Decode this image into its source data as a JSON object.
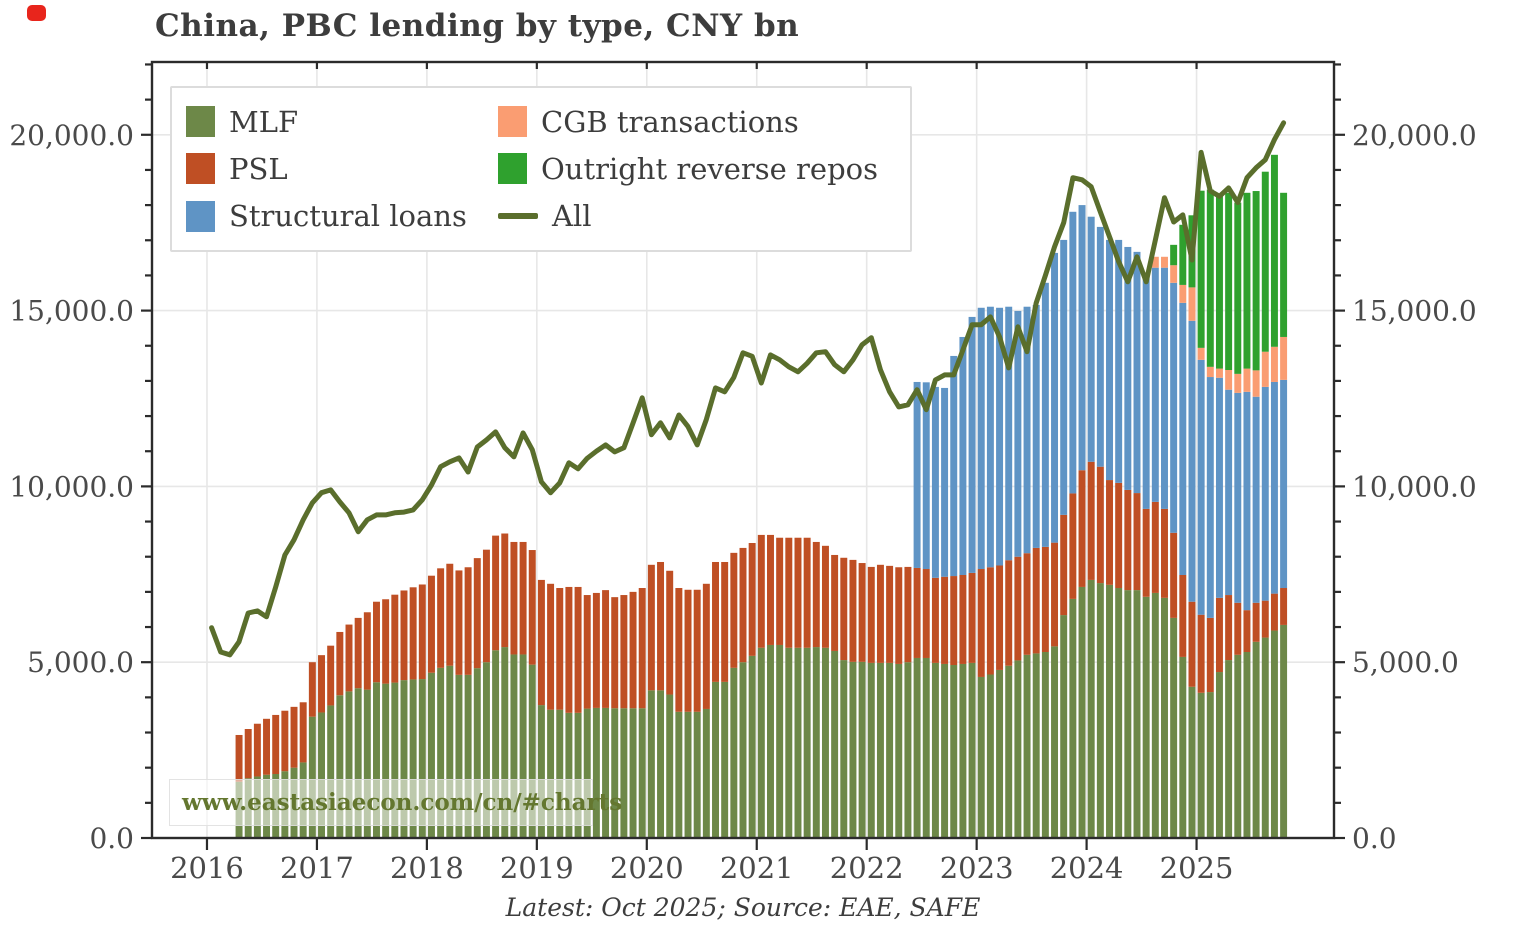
{
  "header": {
    "title": "China, PBC lending by type, CNY bn"
  },
  "caption": {
    "text": "Latest: Oct 2025; Source: EAE, SAFE"
  },
  "watermark": {
    "text": "www.eastasiaecon.com/cn/#charts"
  },
  "colors": {
    "mlf": "#6d8848",
    "psl": "#bf4f24",
    "structural": "#5f94c5",
    "cgb": "#fa9d72",
    "orr": "#2fa12e",
    "all_line": "#5a6e2c",
    "title_text": "#3d3d3d",
    "tick_text": "#4a4a4a",
    "grid": "#e7e7e7",
    "spine": "#2b2b2b",
    "watermark_text": "#64772f",
    "record_dot": "#e8251c"
  },
  "legend": {
    "items": [
      {
        "label": "MLF",
        "color": "#6d8848",
        "swatch": "rect"
      },
      {
        "label": "PSL",
        "color": "#bf4f24",
        "swatch": "rect"
      },
      {
        "label": "Structural loans",
        "color": "#5f94c5",
        "swatch": "rect"
      },
      {
        "label": "CGB transactions",
        "color": "#fa9d72",
        "swatch": "rect"
      },
      {
        "label": "Outright reverse repos",
        "color": "#2fa12e",
        "swatch": "rect"
      },
      {
        "label": "All",
        "color": "#5a6e2c",
        "swatch": "line"
      }
    ]
  },
  "axes": {
    "y_ticks": [
      {
        "value": 0,
        "label": "0.0"
      },
      {
        "value": 5000,
        "label": "5,000.0"
      },
      {
        "value": 10000,
        "label": "10,000.0"
      },
      {
        "value": 15000,
        "label": "15,000.0"
      },
      {
        "value": 20000,
        "label": "20,000.0"
      }
    ],
    "y_minor_step": 1000,
    "x_ticks": [
      "2016",
      "2017",
      "2018",
      "2019",
      "2020",
      "2021",
      "2022",
      "2023",
      "2024",
      "2025"
    ],
    "grid": true,
    "legend_position": "upper-left"
  },
  "chart_data": {
    "type": "bar",
    "subtype": "stacked-bars-with-line-overlay",
    "title": "China, PBC lending by type, CNY bn",
    "xlabel": "",
    "ylabel": "CNY bn",
    "ylim": [
      0,
      22070
    ],
    "x": [
      "2016-01",
      "2016-02",
      "2016-03",
      "2016-04",
      "2016-05",
      "2016-06",
      "2016-07",
      "2016-08",
      "2016-09",
      "2016-10",
      "2016-11",
      "2016-12",
      "2017-01",
      "2017-02",
      "2017-03",
      "2017-04",
      "2017-05",
      "2017-06",
      "2017-07",
      "2017-08",
      "2017-09",
      "2017-10",
      "2017-11",
      "2017-12",
      "2018-01",
      "2018-02",
      "2018-03",
      "2018-04",
      "2018-05",
      "2018-06",
      "2018-07",
      "2018-08",
      "2018-09",
      "2018-10",
      "2018-11",
      "2018-12",
      "2019-01",
      "2019-02",
      "2019-03",
      "2019-04",
      "2019-05",
      "2019-06",
      "2019-07",
      "2019-08",
      "2019-09",
      "2019-10",
      "2019-11",
      "2019-12",
      "2020-01",
      "2020-02",
      "2020-03",
      "2020-04",
      "2020-05",
      "2020-06",
      "2020-07",
      "2020-08",
      "2020-09",
      "2020-10",
      "2020-11",
      "2020-12",
      "2021-01",
      "2021-02",
      "2021-03",
      "2021-04",
      "2021-05",
      "2021-06",
      "2021-07",
      "2021-08",
      "2021-09",
      "2021-10",
      "2021-11",
      "2021-12",
      "2022-01",
      "2022-02",
      "2022-03",
      "2022-04",
      "2022-05",
      "2022-06",
      "2022-07",
      "2022-08",
      "2022-09",
      "2022-10",
      "2022-11",
      "2022-12",
      "2023-01",
      "2023-02",
      "2023-03",
      "2023-04",
      "2023-05",
      "2023-06",
      "2023-07",
      "2023-08",
      "2023-09",
      "2023-10",
      "2023-11",
      "2023-12",
      "2024-01",
      "2024-02",
      "2024-03",
      "2024-04",
      "2024-05",
      "2024-06",
      "2024-07",
      "2024-08",
      "2024-09",
      "2024-10",
      "2024-11",
      "2024-12",
      "2025-01",
      "2025-02",
      "2025-03",
      "2025-04",
      "2025-05",
      "2025-06",
      "2025-07",
      "2025-08",
      "2025-09",
      "2025-10"
    ],
    "series": [
      {
        "name": "MLF",
        "color": "#6d8848",
        "values": [
          0,
          0,
          0,
          1600,
          1700,
          1750,
          1800,
          1820,
          1900,
          2000,
          2150,
          3450,
          3570,
          3770,
          4060,
          4170,
          4260,
          4220,
          4430,
          4390,
          4420,
          4490,
          4510,
          4520,
          4700,
          4840,
          4900,
          4640,
          4640,
          4830,
          5000,
          5340,
          5430,
          5220,
          5220,
          4930,
          3780,
          3650,
          3650,
          3560,
          3560,
          3680,
          3700,
          3700,
          3690,
          3690,
          3690,
          3690,
          4200,
          4200,
          4080,
          3590,
          3590,
          3590,
          3670,
          4440,
          4440,
          4840,
          5000,
          5180,
          5410,
          5490,
          5490,
          5410,
          5410,
          5410,
          5430,
          5410,
          5320,
          5060,
          5010,
          5010,
          4980,
          4980,
          4980,
          4950,
          5000,
          5120,
          5120,
          4980,
          4950,
          4920,
          4950,
          4980,
          4580,
          4650,
          4780,
          4900,
          5050,
          5210,
          5250,
          5290,
          5450,
          6340,
          6800,
          7140,
          7340,
          7250,
          7200,
          7110,
          7050,
          7050,
          6860,
          6970,
          6830,
          6260,
          5150,
          4300,
          4130,
          4150,
          4720,
          5060,
          5210,
          5290,
          5580,
          5700,
          5900,
          6060
        ]
      },
      {
        "name": "PSL",
        "color": "#bf4f24",
        "values": [
          0,
          0,
          0,
          1330,
          1400,
          1500,
          1590,
          1680,
          1720,
          1730,
          1710,
          1550,
          1630,
          1700,
          1800,
          1900,
          2000,
          2200,
          2290,
          2400,
          2500,
          2550,
          2620,
          2690,
          2760,
          2830,
          2900,
          2970,
          3060,
          3130,
          3200,
          3260,
          3230,
          3200,
          3200,
          3260,
          3560,
          3580,
          3460,
          3580,
          3580,
          3230,
          3270,
          3350,
          3160,
          3220,
          3310,
          3420,
          3570,
          3650,
          3520,
          3520,
          3470,
          3470,
          3560,
          3410,
          3410,
          3270,
          3250,
          3210,
          3210,
          3130,
          3050,
          3130,
          3130,
          3130,
          2990,
          2900,
          2730,
          2910,
          2900,
          2810,
          2730,
          2790,
          2760,
          2750,
          2710,
          2560,
          2530,
          2420,
          2480,
          2530,
          2530,
          2560,
          3070,
          3050,
          2970,
          3000,
          2950,
          2890,
          3000,
          2990,
          2950,
          2850,
          3000,
          3320,
          3360,
          3310,
          2980,
          2990,
          2850,
          2760,
          2500,
          2590,
          2530,
          2420,
          2330,
          2420,
          2220,
          2110,
          2110,
          1850,
          1480,
          1190,
          1110,
          1050,
          1050,
          1050
        ]
      },
      {
        "name": "Structural loans",
        "color": "#5f94c5",
        "values": [
          0,
          0,
          0,
          0,
          0,
          0,
          0,
          0,
          0,
          0,
          0,
          0,
          0,
          0,
          0,
          0,
          0,
          0,
          0,
          0,
          0,
          0,
          0,
          0,
          0,
          0,
          0,
          0,
          0,
          0,
          0,
          0,
          0,
          0,
          0,
          0,
          0,
          0,
          0,
          0,
          0,
          0,
          0,
          0,
          0,
          0,
          0,
          0,
          0,
          0,
          0,
          0,
          0,
          0,
          0,
          0,
          0,
          0,
          0,
          0,
          0,
          0,
          0,
          0,
          0,
          0,
          0,
          0,
          0,
          0,
          0,
          0,
          0,
          0,
          0,
          0,
          0,
          5290,
          5310,
          5430,
          5370,
          6260,
          6770,
          7280,
          7430,
          7410,
          7330,
          7210,
          6990,
          7010,
          6910,
          7510,
          8240,
          7820,
          8010,
          7540,
          6970,
          6820,
          6830,
          6910,
          6910,
          6860,
          6710,
          6660,
          6860,
          7110,
          7740,
          7990,
          7250,
          6850,
          6260,
          5840,
          5970,
          6210,
          5860,
          6080,
          6020,
          5920
        ]
      },
      {
        "name": "CGB transactions",
        "color": "#fa9d72",
        "values": [
          0,
          0,
          0,
          0,
          0,
          0,
          0,
          0,
          0,
          0,
          0,
          0,
          0,
          0,
          0,
          0,
          0,
          0,
          0,
          0,
          0,
          0,
          0,
          0,
          0,
          0,
          0,
          0,
          0,
          0,
          0,
          0,
          0,
          0,
          0,
          0,
          0,
          0,
          0,
          0,
          0,
          0,
          0,
          0,
          0,
          0,
          0,
          0,
          0,
          0,
          0,
          0,
          0,
          0,
          0,
          0,
          0,
          0,
          0,
          0,
          0,
          0,
          0,
          0,
          0,
          0,
          0,
          0,
          0,
          0,
          0,
          0,
          0,
          0,
          0,
          0,
          0,
          0,
          0,
          0,
          0,
          0,
          0,
          0,
          0,
          0,
          0,
          0,
          0,
          0,
          0,
          0,
          0,
          0,
          0,
          0,
          0,
          0,
          0,
          0,
          0,
          0,
          0,
          310,
          310,
          500,
          510,
          950,
          340,
          290,
          260,
          560,
          540,
          660,
          750,
          1000,
          1000,
          1220
        ]
      },
      {
        "name": "Outright reverse repos",
        "color": "#2fa12e",
        "values": [
          0,
          0,
          0,
          0,
          0,
          0,
          0,
          0,
          0,
          0,
          0,
          0,
          0,
          0,
          0,
          0,
          0,
          0,
          0,
          0,
          0,
          0,
          0,
          0,
          0,
          0,
          0,
          0,
          0,
          0,
          0,
          0,
          0,
          0,
          0,
          0,
          0,
          0,
          0,
          0,
          0,
          0,
          0,
          0,
          0,
          0,
          0,
          0,
          0,
          0,
          0,
          0,
          0,
          0,
          0,
          0,
          0,
          0,
          0,
          0,
          0,
          0,
          0,
          0,
          0,
          0,
          0,
          0,
          0,
          0,
          0,
          0,
          0,
          0,
          0,
          0,
          0,
          0,
          0,
          0,
          0,
          0,
          0,
          0,
          0,
          0,
          0,
          0,
          0,
          0,
          0,
          0,
          0,
          0,
          0,
          0,
          0,
          0,
          0,
          0,
          0,
          0,
          0,
          0,
          0,
          580,
          1710,
          2050,
          4470,
          5040,
          4900,
          5040,
          4870,
          5000,
          5100,
          5120,
          5460,
          4100
        ]
      }
    ],
    "line": {
      "name": "All",
      "color": "#5a6e2c",
      "values": [
        5980,
        5290,
        5210,
        5580,
        6400,
        6460,
        6290,
        7140,
        8050,
        8480,
        9050,
        9530,
        9820,
        9900,
        9560,
        9250,
        8710,
        9050,
        9190,
        9190,
        9250,
        9270,
        9330,
        9620,
        10040,
        10560,
        10700,
        10810,
        10410,
        11120,
        11320,
        11550,
        11100,
        10840,
        11520,
        11040,
        10130,
        9820,
        10100,
        10670,
        10500,
        10800,
        11000,
        11180,
        10980,
        11100,
        11800,
        12520,
        11470,
        11810,
        11380,
        12030,
        11700,
        11180,
        11900,
        12800,
        12690,
        13100,
        13800,
        13700,
        12940,
        13740,
        13600,
        13400,
        13260,
        13500,
        13800,
        13830,
        13460,
        13260,
        13600,
        14030,
        14230,
        13320,
        12690,
        12260,
        12320,
        12750,
        12180,
        13030,
        13170,
        13170,
        13880,
        14600,
        14600,
        14820,
        14250,
        13370,
        14540,
        13830,
        15220,
        16000,
        16810,
        17500,
        18780,
        18720,
        18520,
        17810,
        17100,
        16390,
        15820,
        16530,
        15820,
        17000,
        18210,
        17520,
        17720,
        16440,
        19500,
        18400,
        18250,
        18490,
        18070,
        18780,
        19060,
        19290,
        19860,
        20340
      ]
    }
  }
}
